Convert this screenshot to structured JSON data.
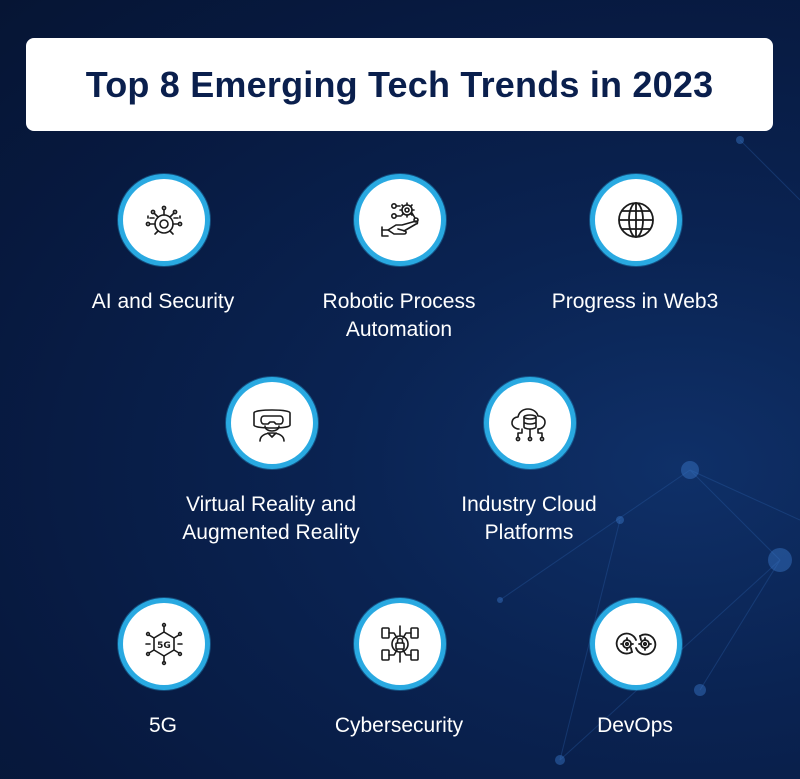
{
  "title": "Top 8 Emerging Tech Trends in 2023",
  "trends": [
    {
      "label": "AI and Security",
      "icon": "ai-security-icon"
    },
    {
      "label": "Robotic Process\nAutomation",
      "icon": "robotic-automation-icon"
    },
    {
      "label": "Progress in Web3",
      "icon": "globe-icon"
    },
    {
      "label": "Virtual Reality and\nAugmented Reality",
      "icon": "vr-headset-icon"
    },
    {
      "label": "Industry Cloud\nPlatforms",
      "icon": "cloud-database-icon"
    },
    {
      "label": "5G",
      "icon": "5g-chip-icon"
    },
    {
      "label": "Cybersecurity",
      "icon": "lock-circuit-icon"
    },
    {
      "label": "DevOps",
      "icon": "gears-cycle-icon"
    }
  ],
  "colors": {
    "background": "#07193f",
    "ring": "#29a9e1",
    "title_text": "#0a1f4d",
    "label_text": "#ffffff"
  }
}
